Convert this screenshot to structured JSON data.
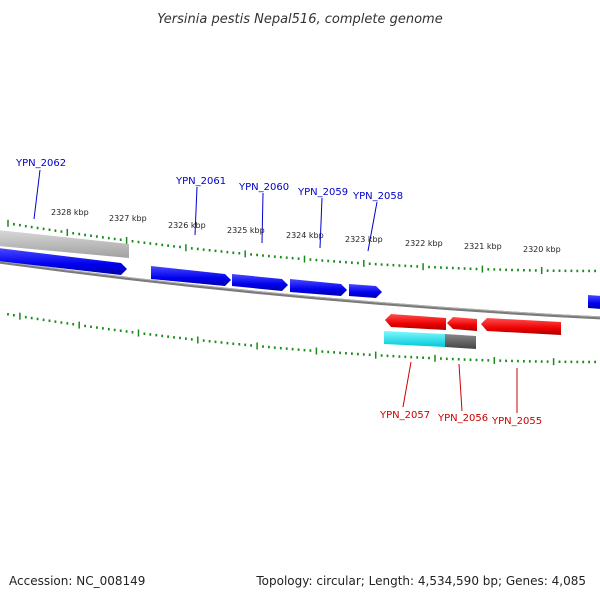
{
  "title": "Yersinia pestis Nepal516, complete genome",
  "footer": {
    "accession": "Accession: NC_008149",
    "summary": "Topology: circular; Length: 4,534,590 bp; Genes: 4,085"
  },
  "colors": {
    "forward_gene": "#0000ee",
    "reverse_gene": "#ee0000",
    "other_feature_gray": "#b8b8b8",
    "cyan_feature": "#00e5ee",
    "dark_feature": "#666666",
    "backbone": "#808080",
    "tick": "#1a8a1a"
  },
  "kbp_labels": [
    "2328 kbp",
    "2327 kbp",
    "2326 kbp",
    "2325 kbp",
    "2324 kbp",
    "2323 kbp",
    "2322 kbp",
    "2321 kbp",
    "2320 kbp"
  ],
  "genes_forward": [
    {
      "label": "YPN_2062"
    },
    {
      "label": "YPN_2061"
    },
    {
      "label": "YPN_2060"
    },
    {
      "label": "YPN_2059"
    },
    {
      "label": "YPN_2058"
    }
  ],
  "genes_reverse": [
    {
      "label": "YPN_2057"
    },
    {
      "label": "YPN_2056"
    },
    {
      "label": "YPN_2055"
    }
  ]
}
